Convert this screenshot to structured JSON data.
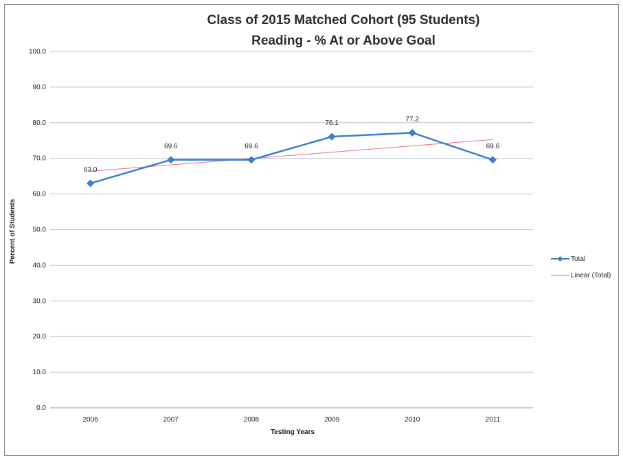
{
  "chart_data": {
    "type": "line",
    "title": [
      "Class of 2015 Matched Cohort (95 Students)",
      "Reading - % At or Above Goal"
    ],
    "xlabel": "Testing Years",
    "ylabel": "Percent of Students",
    "categories": [
      "2006",
      "2007",
      "2008",
      "2009",
      "2010",
      "2011"
    ],
    "y_ticks": [
      "0.0",
      "10.0",
      "20.0",
      "30.0",
      "40.0",
      "50.0",
      "60.0",
      "70.0",
      "80.0",
      "90.0",
      "100.0"
    ],
    "ylim": [
      0,
      100
    ],
    "grid": true,
    "legend_position": "right",
    "series": [
      {
        "name": "Total",
        "values": [
          63.0,
          69.6,
          69.6,
          76.1,
          77.2,
          69.6
        ],
        "labels": [
          "63.0",
          "69.6",
          "69.6",
          "76.1",
          "77.2",
          "69.6"
        ],
        "color": "#3a7fd0",
        "marker": "diamond"
      }
    ],
    "trendline": {
      "name": "Linear (Total)",
      "type": "linear",
      "of_series": "Total",
      "color": "#e8708a"
    }
  }
}
